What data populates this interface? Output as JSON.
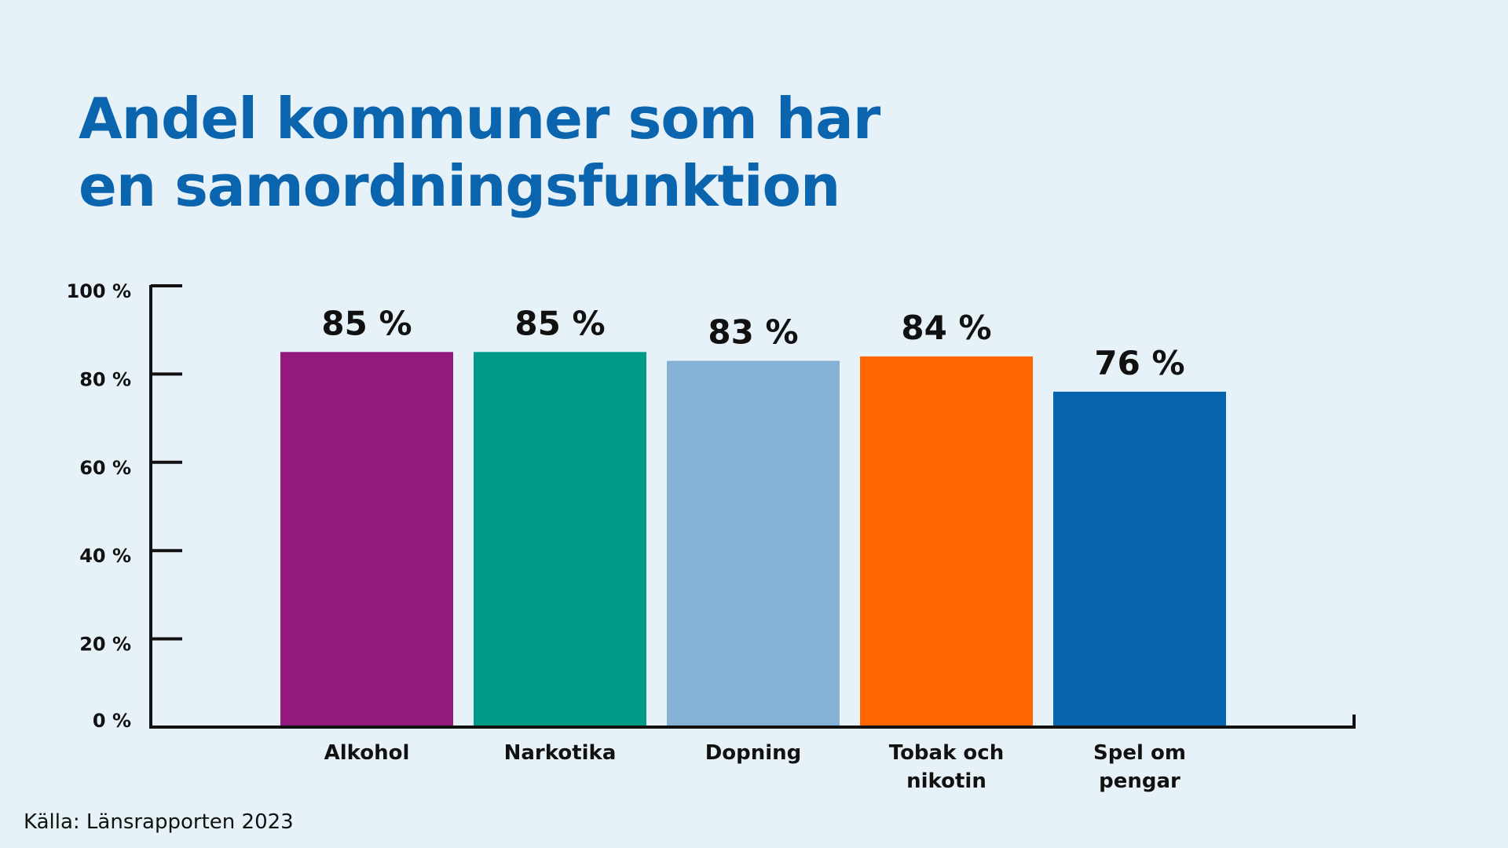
{
  "chart_data": {
    "type": "bar",
    "title_lines": [
      "Andel kommuner som har",
      "en samordningsfunktion"
    ],
    "categories": [
      [
        "Alkohol"
      ],
      [
        "Narkotika"
      ],
      [
        "Dopning"
      ],
      [
        "Tobak och",
        "nikotin"
      ],
      [
        "Spel om",
        "pengar"
      ]
    ],
    "values": [
      85,
      85,
      83,
      84,
      76
    ],
    "value_labels": [
      "85 %",
      "85 %",
      "83 %",
      "84 %",
      "76 %"
    ],
    "colors": [
      "#931a7c",
      "#009a87",
      "#84b1d6",
      "#ff6600",
      "#0564ad"
    ],
    "yticks": [
      0,
      20,
      40,
      60,
      80,
      100
    ],
    "ytick_labels": [
      "0 %",
      "20 %",
      "40 %",
      "60 %",
      "80 %",
      "100 %"
    ],
    "ylim": [
      0,
      100
    ],
    "grid": false,
    "legend": "none",
    "xlabel": "",
    "ylabel": "",
    "source": "Källa: Länsrapporten 2023"
  }
}
